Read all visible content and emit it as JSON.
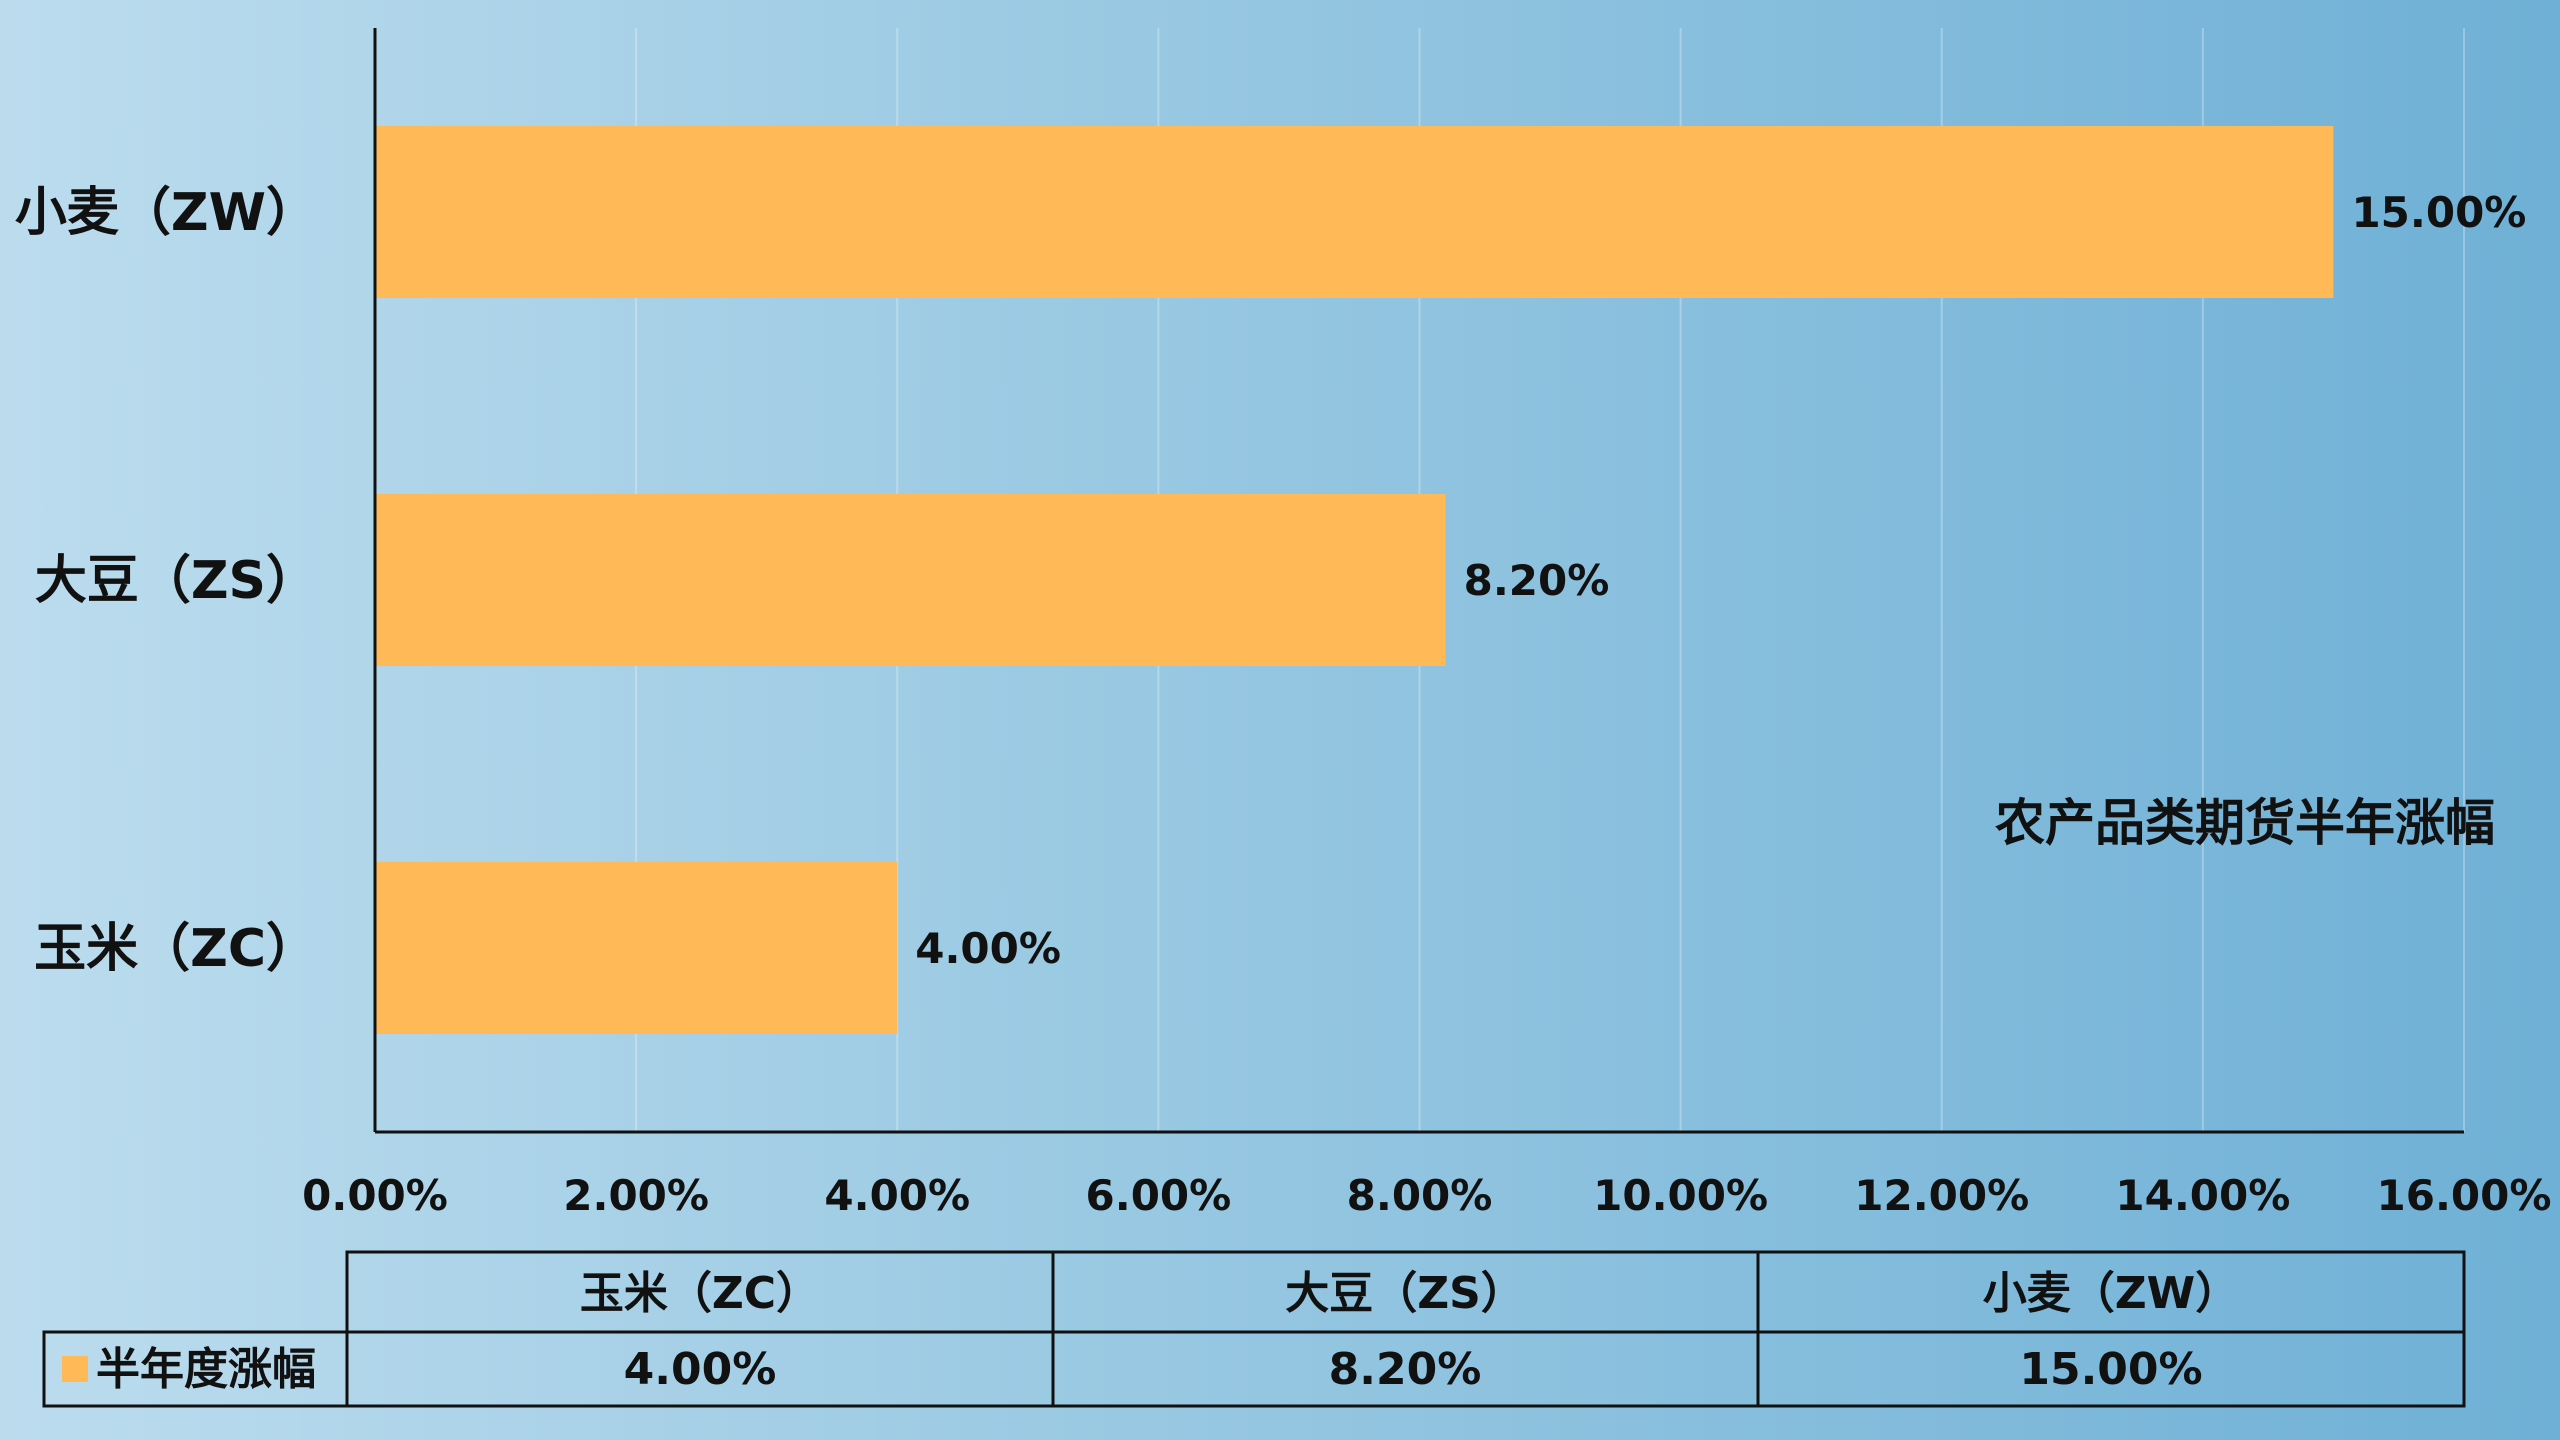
{
  "chart_data": {
    "type": "bar",
    "orientation": "horizontal",
    "title": "农产品类期货半年涨幅",
    "categories": [
      "小麦（ZW）",
      "大豆（ZS）",
      "玉米（ZC）"
    ],
    "series": [
      {
        "name": "半年度涨幅",
        "values": [
          15.0,
          8.2,
          4.0
        ],
        "labels": [
          "15.00%",
          "8.20%",
          "4.00%"
        ]
      }
    ],
    "x_ticks": [
      "0.00%",
      "2.00%",
      "4.00%",
      "6.00%",
      "8.00%",
      "10.00%",
      "12.00%",
      "14.00%",
      "16.00%"
    ],
    "xlim": [
      0,
      16
    ],
    "grid": true,
    "bar_color": "#FFB957",
    "data_table": {
      "headers": [
        "玉米（ZC）",
        "大豆（ZS）",
        "小麦（ZW）"
      ],
      "row_label": "半年度涨幅",
      "row_values": [
        "4.00%",
        "8.20%",
        "15.00%"
      ]
    }
  }
}
